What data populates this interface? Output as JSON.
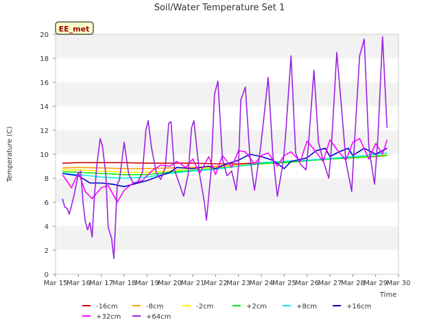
{
  "chart_data": {
    "type": "line",
    "title": "Soil/Water Temperature Set 1",
    "xlabel": "Time",
    "ylabel": "Temperature (C)",
    "site_label": "EE_met",
    "x_ticks": [
      "Mar 15",
      "Mar 16",
      "Mar 17",
      "Mar 18",
      "Mar 19",
      "Mar 20",
      "Mar 21",
      "Mar 22",
      "Mar 23",
      "Mar 24",
      "Mar 25",
      "Mar 26",
      "Mar 27",
      "Mar 28",
      "Mar 29",
      "Mar 30"
    ],
    "xlim": [
      0,
      15
    ],
    "ylim": [
      0,
      20
    ],
    "y_ticks": [
      0,
      2,
      4,
      6,
      8,
      10,
      12,
      14,
      16,
      18,
      20
    ],
    "grid": "alternating horizontal bands",
    "legend_position": "bottom",
    "series": [
      {
        "name": "-16cm",
        "color": "#cc0000",
        "x": [
          0.3,
          1,
          2,
          3,
          4,
          5,
          6,
          7,
          8,
          9,
          10,
          11,
          12,
          13,
          14,
          14.5
        ],
        "y": [
          9.25,
          9.3,
          9.3,
          9.3,
          9.25,
          9.25,
          9.25,
          9.2,
          9.2,
          9.3,
          9.4,
          9.5,
          9.6,
          9.7,
          9.8,
          9.9
        ]
      },
      {
        "name": "-8cm",
        "color": "#ff9900",
        "x": [
          0.3,
          1,
          2,
          3,
          4,
          5,
          6,
          7,
          8,
          9,
          10,
          11,
          12,
          13,
          14,
          14.5
        ],
        "y": [
          8.85,
          8.9,
          8.85,
          8.8,
          8.8,
          8.85,
          8.9,
          9.0,
          9.1,
          9.2,
          9.35,
          9.5,
          9.6,
          9.7,
          9.8,
          9.9
        ]
      },
      {
        "name": "-2cm",
        "color": "#ffee00",
        "x": [
          0.3,
          1,
          2,
          3,
          4,
          5,
          6,
          7,
          8,
          9,
          10,
          11,
          12,
          13,
          14,
          14.5
        ],
        "y": [
          8.7,
          8.7,
          8.6,
          8.5,
          8.5,
          8.6,
          8.8,
          8.9,
          9.05,
          9.2,
          9.3,
          9.45,
          9.6,
          9.7,
          9.85,
          9.95
        ]
      },
      {
        "name": "+2cm",
        "color": "#00ee00",
        "x": [
          0.3,
          1,
          2,
          3,
          4,
          5,
          6,
          7,
          8,
          9,
          10,
          11,
          12,
          13,
          14,
          14.5
        ],
        "y": [
          8.55,
          8.5,
          8.4,
          8.3,
          8.3,
          8.5,
          8.65,
          8.8,
          9.0,
          9.2,
          9.3,
          9.45,
          9.6,
          9.7,
          9.85,
          9.9
        ]
      },
      {
        "name": "+8cm",
        "color": "#00eeee",
        "x": [
          0.3,
          1,
          2,
          3,
          4,
          5,
          6,
          7,
          8,
          9,
          10,
          11,
          12,
          13,
          14,
          14.5
        ],
        "y": [
          8.4,
          8.3,
          8.1,
          8.0,
          8.1,
          8.4,
          8.6,
          8.75,
          9.0,
          9.3,
          9.4,
          9.5,
          9.65,
          9.8,
          10.0,
          10.1
        ]
      },
      {
        "name": "+16cm",
        "color": "#0000cc",
        "x": [
          0.3,
          1,
          1.5,
          2,
          2.5,
          3,
          4,
          5,
          5.3,
          6,
          6.7,
          7,
          7.5,
          8,
          8.5,
          9,
          9.5,
          10,
          10.3,
          11,
          11.4,
          11.8,
          12,
          12.4,
          12.8,
          13,
          13.5,
          14,
          14.5
        ],
        "y": [
          8.4,
          8.2,
          7.6,
          7.6,
          7.5,
          7.3,
          7.8,
          8.5,
          8.9,
          8.8,
          9.0,
          8.8,
          9.2,
          9.5,
          10.0,
          9.8,
          9.5,
          8.8,
          9.4,
          9.7,
          10.3,
          10.5,
          9.8,
          10.2,
          10.5,
          9.9,
          10.5,
          10.0,
          10.5
        ]
      },
      {
        "name": "+32cm",
        "color": "#ff00ff",
        "x": [
          0.3,
          0.7,
          1.0,
          1.3,
          1.6,
          2.0,
          2.3,
          2.7,
          3.0,
          3.4,
          3.8,
          4.2,
          4.6,
          5.0,
          5.3,
          5.7,
          6.0,
          6.3,
          6.7,
          7.0,
          7.3,
          7.7,
          8.0,
          8.3,
          8.7,
          9.0,
          9.3,
          9.7,
          10.0,
          10.3,
          10.7,
          11.0,
          11.3,
          11.7,
          12.0,
          12.3,
          12.7,
          13.0,
          13.3,
          13.7,
          14.0,
          14.3,
          14.5
        ],
        "y": [
          8.3,
          7.2,
          8.5,
          6.9,
          6.3,
          7.2,
          7.4,
          6.0,
          7.0,
          7.6,
          7.8,
          8.6,
          9.1,
          9.0,
          9.4,
          8.9,
          9.6,
          8.4,
          9.8,
          8.3,
          9.9,
          8.9,
          10.3,
          10.2,
          9.2,
          9.9,
          10.1,
          9.0,
          9.9,
          10.2,
          9.4,
          11.1,
          10.4,
          9.4,
          11.2,
          10.4,
          9.5,
          11.0,
          11.3,
          9.6,
          10.9,
          10.0,
          11.2
        ]
      },
      {
        "name": "+64cm",
        "color": "#9a20e0",
        "x": [
          0.3,
          0.4,
          0.5,
          0.6,
          0.8,
          1.0,
          1.1,
          1.2,
          1.3,
          1.4,
          1.5,
          1.6,
          1.7,
          1.8,
          1.95,
          2.05,
          2.2,
          2.3,
          2.45,
          2.55,
          2.7,
          2.8,
          3.0,
          3.2,
          3.4,
          3.6,
          3.8,
          3.95,
          4.05,
          4.2,
          4.4,
          4.6,
          4.8,
          4.95,
          5.05,
          5.2,
          5.4,
          5.6,
          5.8,
          5.95,
          6.05,
          6.3,
          6.5,
          6.6,
          6.8,
          6.95,
          7.1,
          7.3,
          7.5,
          7.7,
          7.9,
          8.0,
          8.1,
          8.3,
          8.5,
          8.7,
          8.95,
          9.05,
          9.3,
          9.5,
          9.7,
          9.95,
          10.05,
          10.3,
          10.5,
          10.7,
          10.95,
          11.05,
          11.3,
          11.5,
          11.7,
          11.95,
          12.05,
          12.3,
          12.5,
          12.7,
          12.95,
          13.05,
          13.3,
          13.5,
          13.7,
          13.95,
          14.1,
          14.3,
          14.5
        ],
        "y": [
          6.3,
          5.6,
          5.5,
          5.0,
          6.5,
          8.4,
          8.6,
          6.0,
          4.4,
          3.7,
          4.3,
          3.1,
          6.5,
          9.0,
          11.3,
          10.7,
          8.3,
          3.9,
          3.0,
          1.3,
          7.5,
          7.9,
          11.0,
          8.3,
          7.6,
          7.7,
          8.5,
          12.0,
          12.8,
          10.5,
          8.5,
          7.9,
          8.9,
          12.6,
          12.7,
          8.7,
          7.6,
          6.5,
          8.3,
          12.2,
          12.8,
          8.3,
          6.1,
          4.5,
          8.6,
          15.0,
          16.1,
          9.6,
          8.2,
          8.6,
          7.0,
          9.0,
          14.5,
          15.6,
          9.8,
          7.0,
          10.3,
          12.0,
          16.4,
          10.0,
          6.5,
          9.3,
          11.3,
          18.2,
          10.1,
          9.2,
          8.7,
          10.5,
          17.0,
          11.0,
          9.5,
          8.0,
          10.2,
          18.5,
          14.0,
          9.4,
          6.9,
          10.2,
          18.2,
          19.6,
          10.6,
          7.5,
          11.5,
          19.8,
          12.2
        ]
      }
    ]
  }
}
